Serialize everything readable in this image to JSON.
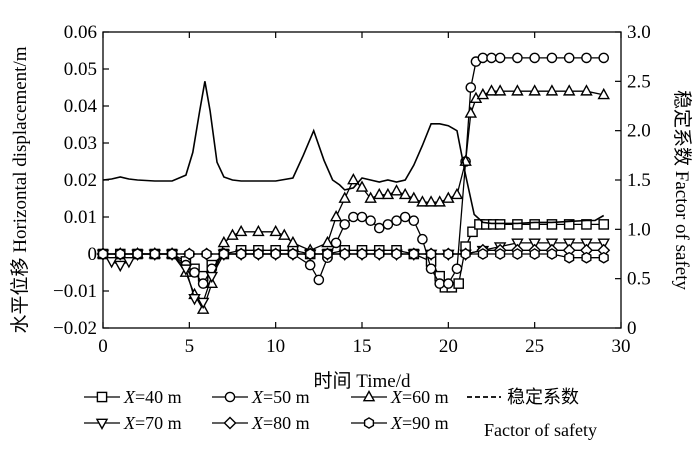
{
  "chart_data": {
    "type": "line",
    "xlabel": "时间 Time/d",
    "ylabel_left": "水平位移 Horizontal displacement/m",
    "ylabel_right": "稳定系数 Factor of safety",
    "xlim": [
      0,
      30
    ],
    "ylim_left": [
      -0.02,
      0.06
    ],
    "ylim_right": [
      0,
      3.0
    ],
    "x_ticks": [
      "0",
      "5",
      "10",
      "15",
      "20",
      "25",
      "30"
    ],
    "y_left_ticks": [
      "-0.02",
      "-0.01",
      "0",
      "0.01",
      "0.02",
      "0.03",
      "0.04",
      "0.05",
      "0.06"
    ],
    "y_right_ticks": [
      "0",
      "0.5",
      "1.0",
      "1.5",
      "2.0",
      "2.5",
      "3.0"
    ],
    "legend_placement": "bottom",
    "series": [
      {
        "name": "X=40 m",
        "marker": "square",
        "axis": "left",
        "x": [
          0,
          1,
          2,
          3,
          4,
          4.8,
          5.3,
          5.8,
          6.3,
          7,
          8,
          9,
          10,
          11,
          12,
          13,
          14,
          15,
          16,
          17,
          18,
          19,
          19.5,
          19.8,
          20.2,
          20.6,
          21.0,
          21.4,
          21.8,
          22.2,
          22.6,
          23,
          24,
          25,
          26,
          27,
          28,
          29
        ],
        "y": [
          0,
          0,
          0,
          0,
          0,
          -0.002,
          -0.004,
          -0.006,
          -0.003,
          0,
          0.001,
          0.001,
          0.001,
          0.001,
          0,
          0,
          0.001,
          0.001,
          0.001,
          0.001,
          0,
          -0.002,
          -0.006,
          -0.009,
          -0.009,
          -0.008,
          0.002,
          0.006,
          0.008,
          0.008,
          0.008,
          0.008,
          0.008,
          0.008,
          0.008,
          0.008,
          0.008,
          0.008
        ]
      },
      {
        "name": "X=50 m",
        "marker": "circle",
        "axis": "left",
        "x": [
          0,
          1,
          2,
          3,
          4,
          4.8,
          5.3,
          5.8,
          6.3,
          7,
          8,
          9,
          10,
          11,
          12,
          12.5,
          13,
          13.5,
          14,
          14.5,
          15,
          15.5,
          16,
          16.5,
          17,
          17.5,
          18,
          18.5,
          19,
          19.5,
          20,
          20.5,
          21,
          21.3,
          21.6,
          22,
          22.5,
          23,
          24,
          25,
          26,
          27,
          28,
          29
        ],
        "y": [
          0,
          0,
          0,
          0,
          0,
          -0.003,
          -0.005,
          -0.008,
          -0.004,
          0,
          0,
          0,
          0,
          0,
          -0.003,
          -0.007,
          -0.001,
          0.003,
          0.008,
          0.01,
          0.01,
          0.009,
          0.007,
          0.008,
          0.009,
          0.01,
          0.009,
          0.004,
          -0.004,
          -0.008,
          -0.008,
          -0.004,
          0.025,
          0.045,
          0.052,
          0.053,
          0.053,
          0.053,
          0.053,
          0.053,
          0.053,
          0.053,
          0.053,
          0.053
        ]
      },
      {
        "name": "X=60 m",
        "marker": "triangle-up",
        "axis": "left",
        "x": [
          0,
          1,
          2,
          3,
          4,
          4.8,
          5.3,
          5.8,
          6.3,
          7,
          7.5,
          8,
          9,
          10,
          10.5,
          11,
          12,
          13,
          13.5,
          14,
          14.5,
          15,
          15.5,
          16,
          16.5,
          17,
          17.5,
          18,
          18.5,
          19,
          19.5,
          20,
          20.5,
          21,
          21.3,
          21.6,
          22,
          22.5,
          23,
          24,
          25,
          26,
          27,
          28,
          29
        ],
        "y": [
          0,
          0,
          0,
          0,
          0,
          -0.005,
          -0.011,
          -0.015,
          -0.008,
          0.003,
          0.005,
          0.006,
          0.006,
          0.006,
          0.005,
          0.003,
          0.001,
          0.003,
          0.01,
          0.015,
          0.02,
          0.018,
          0.015,
          0.016,
          0.016,
          0.017,
          0.016,
          0.015,
          0.014,
          0.014,
          0.014,
          0.015,
          0.016,
          0.025,
          0.038,
          0.042,
          0.043,
          0.044,
          0.044,
          0.044,
          0.044,
          0.044,
          0.044,
          0.044,
          0.043
        ]
      },
      {
        "name": "X=70 m",
        "marker": "triangle-down",
        "axis": "left",
        "x": [
          0,
          0.5,
          1,
          1.5,
          2,
          3,
          4,
          4.8,
          5.3,
          5.8,
          6.3,
          7,
          8,
          9,
          10,
          11,
          12,
          13,
          14,
          15,
          16,
          17,
          18,
          19,
          20,
          21,
          22,
          23,
          24,
          25,
          26,
          27,
          28,
          29
        ],
        "y": [
          0,
          -0.002,
          -0.003,
          -0.002,
          0,
          0,
          0,
          -0.004,
          -0.012,
          -0.013,
          -0.006,
          0,
          0,
          0,
          0,
          0,
          0,
          0,
          0,
          0,
          0,
          0,
          0,
          0,
          0,
          0,
          0.001,
          0.002,
          0.003,
          0.003,
          0.003,
          0.003,
          0.003,
          0.003
        ]
      },
      {
        "name": "X=80 m",
        "marker": "diamond",
        "axis": "left",
        "x": [
          0,
          1,
          2,
          3,
          4,
          5,
          6,
          7,
          8,
          9,
          10,
          11,
          12,
          13,
          14,
          15,
          16,
          17,
          18,
          19,
          20,
          21,
          22,
          23,
          24,
          25,
          26,
          27,
          28,
          29
        ],
        "y": [
          0,
          0,
          0,
          0,
          0,
          0,
          0,
          0,
          0,
          0,
          0,
          0,
          0,
          0,
          0,
          0,
          0,
          0,
          0,
          0,
          0,
          0,
          0.001,
          0.001,
          0.001,
          0.001,
          0.001,
          0.001,
          0.001,
          0.001
        ]
      },
      {
        "name": "X=90 m",
        "marker": "hexagon",
        "axis": "left",
        "x": [
          0,
          1,
          2,
          3,
          4,
          5,
          6,
          7,
          8,
          9,
          10,
          11,
          12,
          13,
          14,
          15,
          16,
          17,
          18,
          19,
          20,
          21,
          22,
          23,
          24,
          25,
          26,
          27,
          28,
          29
        ],
        "y": [
          0,
          0,
          0,
          0,
          0,
          0,
          0,
          0,
          0,
          0,
          0,
          0,
          0,
          0,
          0,
          0,
          0,
          0,
          0,
          0,
          0,
          0,
          0,
          0,
          0,
          0,
          0,
          -0.001,
          -0.001,
          -0.001
        ]
      },
      {
        "name": "稳定系数 Factor of safety",
        "marker": "none",
        "axis": "right",
        "dash": true,
        "x": [
          0,
          0.5,
          1,
          1.5,
          2,
          3,
          4,
          4.8,
          5.2,
          5.6,
          5.9,
          6.2,
          6.6,
          7,
          7.5,
          8,
          9,
          10,
          11,
          11.6,
          12.2,
          12.8,
          13.3,
          13.7,
          14,
          14.5,
          15,
          15.5,
          16,
          16.5,
          17,
          17.5,
          18,
          18.5,
          19,
          19.5,
          20,
          20.5,
          21,
          21.5,
          22,
          22.5,
          23,
          24,
          25,
          26,
          27,
          28,
          28.5,
          29
        ],
        "y": [
          1.5,
          1.51,
          1.53,
          1.51,
          1.5,
          1.49,
          1.49,
          1.55,
          1.78,
          2.2,
          2.5,
          2.2,
          1.68,
          1.53,
          1.5,
          1.49,
          1.49,
          1.49,
          1.52,
          1.75,
          2.0,
          1.7,
          1.5,
          1.45,
          1.4,
          1.42,
          1.52,
          1.5,
          1.48,
          1.5,
          1.48,
          1.5,
          1.65,
          1.85,
          2.07,
          2.07,
          2.05,
          2.0,
          1.55,
          1.15,
          1.07,
          1.06,
          1.06,
          1.06,
          1.07,
          1.07,
          1.08,
          1.09,
          1.09,
          1.14
        ]
      }
    ]
  }
}
